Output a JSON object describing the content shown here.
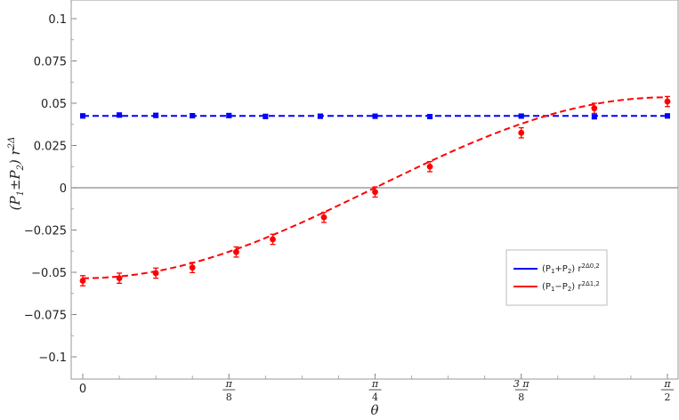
{
  "chart_data": {
    "type": "scatter",
    "xlabel": "θ",
    "ylabel": "(P₁±P₂) r^2Δ",
    "xlim": [
      0,
      1.5708
    ],
    "ylim": [
      -0.11,
      0.11
    ],
    "yticks": [
      -0.1,
      -0.075,
      -0.05,
      -0.025,
      0,
      0.025,
      0.05,
      0.075,
      0.1
    ],
    "ytick_labels": [
      "−0.1",
      "−0.075",
      "−0.05",
      "−0.025",
      "0",
      "0.025",
      "0.05",
      "0.075",
      "0.1"
    ],
    "xticks": [
      {
        "value": 0,
        "label": "0"
      },
      {
        "value": 0.3927,
        "num": "π",
        "den": "8"
      },
      {
        "value": 0.7854,
        "num": "π",
        "den": "4"
      },
      {
        "value": 1.1781,
        "num": "3 π",
        "den": "8"
      },
      {
        "value": 1.5708,
        "num": "π",
        "den": "2"
      }
    ],
    "grid": false,
    "legend_position": "lower-right",
    "series": [
      {
        "name": "(P₁+P₂) r^2Δ0,2",
        "color": "#0000ff",
        "fit": {
          "kind": "constant",
          "value": 0.0425
        },
        "x": [
          0,
          0.0982,
          0.1963,
          0.2945,
          0.3927,
          0.4909,
          0.6381,
          0.7854,
          0.9326,
          1.1781,
          1.3744,
          1.5708
        ],
        "y": [
          0.0425,
          0.043,
          0.0428,
          0.0426,
          0.0427,
          0.0422,
          0.0423,
          0.0423,
          0.0421,
          0.0424,
          0.042,
          0.0425
        ],
        "err": [
          0.0012,
          0.0012,
          0.0012,
          0.0012,
          0.0012,
          0.0012,
          0.0012,
          0.0012,
          0.0012,
          0.0012,
          0.0012,
          0.0012
        ]
      },
      {
        "name": "(P₁−P₂) r^2Δ1,2",
        "color": "#ff0000",
        "fit": {
          "kind": "cosine",
          "amplitude": -0.0535,
          "period_factor": 2
        },
        "x": [
          0,
          0.0982,
          0.1963,
          0.2945,
          0.4123,
          0.5105,
          0.6479,
          0.7854,
          0.9326,
          1.1781,
          1.3744,
          1.5708
        ],
        "y": [
          -0.055,
          -0.0535,
          -0.0505,
          -0.0472,
          -0.038,
          -0.0305,
          -0.0175,
          -0.0025,
          0.0125,
          0.0325,
          0.047,
          0.051
        ],
        "err": [
          0.003,
          0.003,
          0.003,
          0.003,
          0.003,
          0.003,
          0.003,
          0.003,
          0.003,
          0.003,
          0.003,
          0.003
        ]
      }
    ]
  }
}
